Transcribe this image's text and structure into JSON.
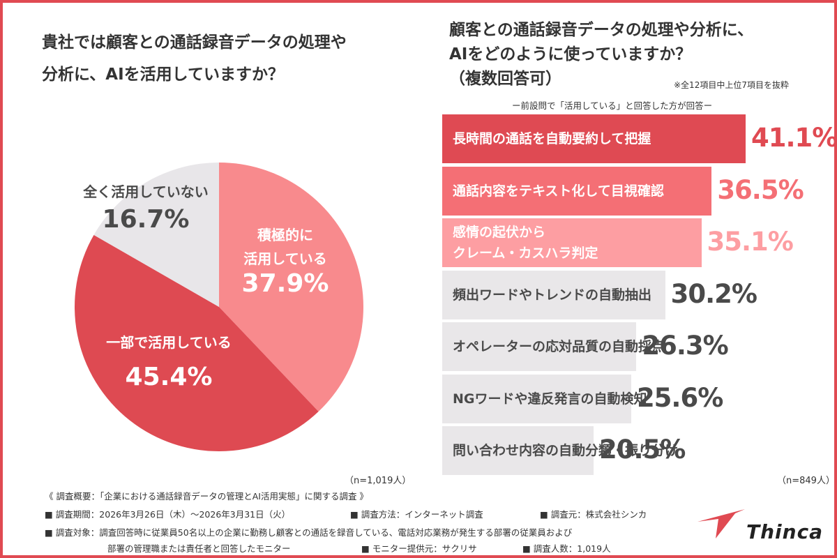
{
  "left": {
    "title_line1": "貴社では顧客との通話録音データの処理や",
    "title_line2": "分析に、AIを活用していますか？",
    "n_label": "（n=1,019人）"
  },
  "right": {
    "title_line1": "顧客との通話録音データの処理や分析に、",
    "title_line2": "AIをどのように使っていますか？",
    "title_line3": "（複数回答可）",
    "note": "※全12項目中上位7項目を抜粋",
    "subtitle": "ー前設問で「活用している」と回答した方が回答ー",
    "n_label": "（n=849人）"
  },
  "footer": {
    "summary": "《 調査概要：「企業における通話録音データの管理とAI活用実態」に関する調査 》",
    "period": "■ 調査期間：2026年3月26日（木）～2026年3月31日（火）",
    "method": "■ 調査方法：インターネット調査",
    "source": "■ 調査元：株式会社シンカ",
    "target": "■ 調査対象：調査回答時に従業員50名以上の企業に勤務し顧客との通話を録音している、電話対応業務が発生する部署の従業員および",
    "target2": "部署の管理職または責任者と回答したモニター",
    "monitor": "■ モニター提供元：サクリサ",
    "count": "■ 調査人数：1,019人"
  },
  "logo": {
    "text": "Thinca"
  },
  "colors": {
    "accent": "#e04a52",
    "pie_dark": "#de4a52",
    "pie_light": "#f88a8d",
    "pie_grey": "#e8e6e9",
    "bar_grey": "#e9e7e9",
    "value_grey": "#4a4a4a"
  },
  "chart_data": [
    {
      "type": "pie",
      "title": "貴社では顧客との通話録音データの処理や分析に、AIを活用していますか？",
      "slices": [
        {
          "label_lines": [
            "積極的に",
            "活用している"
          ],
          "value": 37.9,
          "display": "37.9%",
          "color": "#f88a8d",
          "text_color": "#ffffff"
        },
        {
          "label_lines": [
            "一部で活用している"
          ],
          "value": 45.4,
          "display": "45.4%",
          "color": "#de4a52",
          "text_color": "#ffffff"
        },
        {
          "label_lines": [
            "全く活用していない"
          ],
          "value": 16.7,
          "display": "16.7%",
          "color": "#e8e6e9",
          "text_color": "#4a4a4a"
        }
      ],
      "n": "n=1,019人"
    },
    {
      "type": "bar",
      "orientation": "horizontal",
      "title": "顧客との通話録音データの処理や分析に、AIをどのように使っていますか？（複数回答可）",
      "categories": [
        [
          "長時間の通話を自動要約して把握"
        ],
        [
          "通話内容をテキスト化して目視確認"
        ],
        [
          "感情の起伏から",
          "クレーム・カスハラ判定"
        ],
        [
          "頻出ワードやトレンドの自動抽出"
        ],
        [
          "オペレーターの応対品質の自動採点"
        ],
        [
          "NGワードや違反発言の自動検知"
        ],
        [
          "問い合わせ内容の自動分類・振り分け"
        ]
      ],
      "values": [
        41.1,
        36.5,
        35.1,
        30.2,
        26.3,
        25.6,
        20.5
      ],
      "display": [
        "41.1%",
        "36.5%",
        "35.1%",
        "30.2%",
        "26.3%",
        "25.6%",
        "20.5%"
      ],
      "bar_colors": [
        "#df4a53",
        "#f46f75",
        "#fd9ea2",
        "#e9e7e9",
        "#e9e7e9",
        "#e9e7e9",
        "#e9e7e9"
      ],
      "label_colors": [
        "#ffffff",
        "#ffffff",
        "#ffffff",
        "#4a4a4a",
        "#4a4a4a",
        "#4a4a4a",
        "#4a4a4a"
      ],
      "value_colors": [
        "#e04a52",
        "#f46f75",
        "#fd9ea2",
        "#4a4a4a",
        "#4a4a4a",
        "#4a4a4a",
        "#4a4a4a"
      ],
      "n": "n=849人"
    }
  ]
}
